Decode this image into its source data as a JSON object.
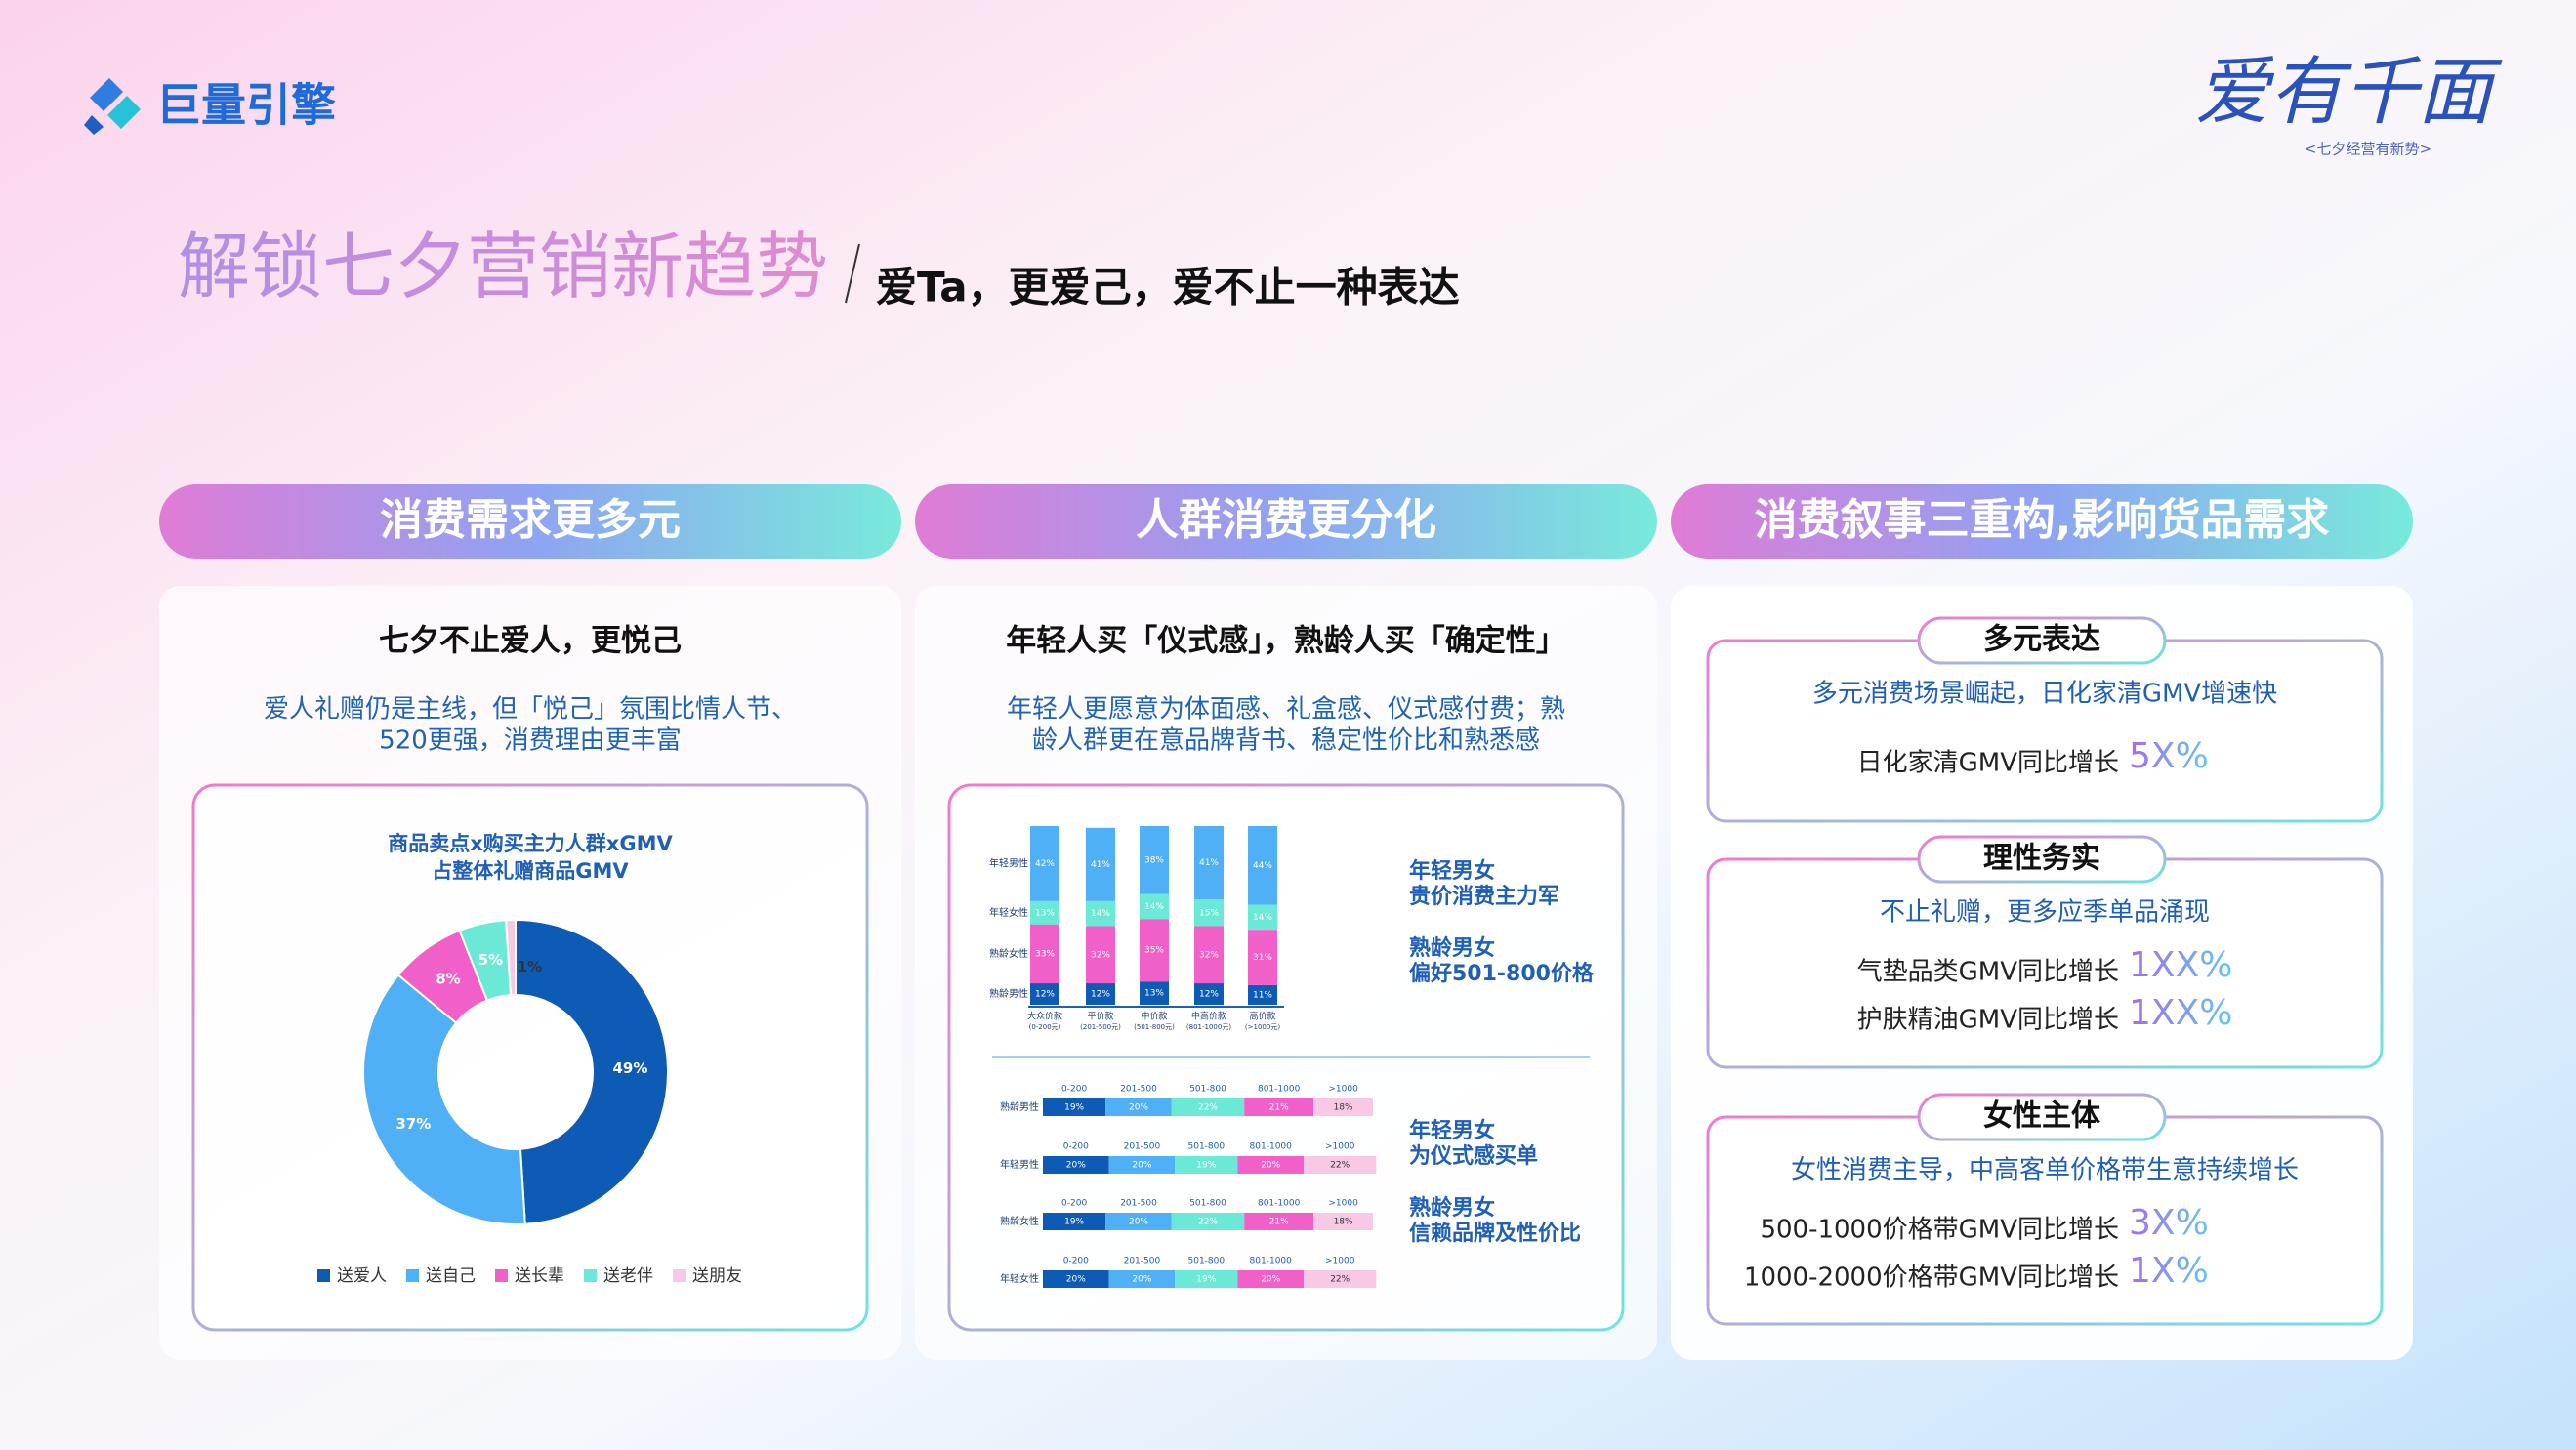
{
  "header": {
    "logo_text": "巨量引擎",
    "brand": "爱有千面",
    "brand_sub": "<七夕经营有新势>",
    "title": "解锁七夕营销新趋势",
    "subtitle": "爱Ta，更爱己，爱不止一种表达"
  },
  "panels": [
    {
      "heading": "消费需求更多元",
      "title": "七夕不止爱人，更悦己",
      "desc": [
        "爱人礼赠仍是主线，但「悦己」氛围比情人节、",
        "520更强，消费理由更丰富"
      ]
    },
    {
      "heading": "人群消费更分化",
      "title": "年轻人买「仪式感」，熟龄人买「确定性」",
      "desc": [
        "年轻人更愿意为体面感、礼盒感、仪式感付费；熟",
        "龄人群更在意品牌背书、稳定性价比和熟悉感"
      ],
      "notes": [
        [
          "年轻男女",
          "贵价消费主力军"
        ],
        [
          "熟龄男女",
          "偏好501-800价格"
        ],
        [
          "年轻男女",
          "为仪式感买单"
        ],
        [
          "熟龄男女",
          "信赖品牌及性价比"
        ]
      ]
    },
    {
      "heading": "消费叙事三重构,影响货品需求",
      "boxes": [
        {
          "tag": "多元表达",
          "desc": "多元消费场景崛起，日化家清GMV增速快",
          "rows": [
            {
              "label": "日化家清GMV同比增长",
              "value": "5X%"
            }
          ]
        },
        {
          "tag": "理性务实",
          "desc": "不止礼赠，更多应季单品涌现",
          "rows": [
            {
              "label": "气垫品类GMV同比增长",
              "value": "1XX%"
            },
            {
              "label": "护肤精油GMV同比增长",
              "value": "1XX%"
            }
          ]
        },
        {
          "tag": "女性主体",
          "desc": "女性消费主导，中高客单价格带生意持续增长",
          "rows": [
            {
              "label": "500-1000价格带GMV同比增长",
              "value": "3X%"
            },
            {
              "label": "1000-2000价格带GMV同比增长",
              "value": "1X%"
            }
          ]
        }
      ]
    }
  ],
  "chart_data": [
    {
      "type": "pie",
      "donut": true,
      "title": [
        "商品卖点x购买主力人群xGMV",
        "占整体礼赠商品GMV"
      ],
      "categories": [
        "送爱人",
        "送自己",
        "送长辈",
        "送老伴",
        "送朋友"
      ],
      "values": [
        49,
        37,
        8,
        5,
        1
      ],
      "value_labels": [
        "49%",
        "37%",
        "8%",
        "5%",
        "1%"
      ],
      "colors": [
        "#0d5bb5",
        "#4fb0f5",
        "#f15fc8",
        "#6ce8d6",
        "#f8c8e4"
      ]
    },
    {
      "type": "bar",
      "stacked": true,
      "categories": [
        "大众价款",
        "平价款",
        "中价款",
        "中高价款",
        "高价款"
      ],
      "category_notes": [
        "(0-200元)",
        "(201-500元)",
        "(501-800元)",
        "(801-1000元)",
        "(>1000元)"
      ],
      "ylim": [
        0,
        100
      ],
      "series": [
        {
          "name": "熟龄男性",
          "color": "#0d5bb5",
          "values": [
            12,
            12,
            13,
            12,
            11
          ],
          "value_labels": [
            "12%",
            "12%",
            "13%",
            "12%",
            "11%"
          ]
        },
        {
          "name": "熟龄女性",
          "color": "#f15fc8",
          "values": [
            33,
            32,
            35,
            32,
            31
          ],
          "value_labels": [
            "33%",
            "32%",
            "35%",
            "32%",
            "31%"
          ]
        },
        {
          "name": "年轻女性",
          "color": "#6ce8d6",
          "values": [
            13,
            14,
            14,
            15,
            14
          ],
          "value_labels": [
            "13%",
            "14%",
            "14%",
            "15%",
            "14%"
          ]
        },
        {
          "name": "年轻男性",
          "color": "#4fb0f5",
          "values": [
            42,
            41,
            38,
            41,
            44
          ],
          "value_labels": [
            "42%",
            "41%",
            "38%",
            "41%",
            "44%"
          ]
        }
      ]
    },
    {
      "type": "hbar",
      "categories": [
        "0-200",
        "201-500",
        "501-800",
        "801-1000",
        ">1000"
      ],
      "colors": [
        "#0d5bb5",
        "#4fb0f5",
        "#6ce8d6",
        "#f15fc8",
        "#f8c8e4"
      ],
      "xlim": [
        0,
        100
      ],
      "series": [
        {
          "name": "熟龄男性",
          "values": [
            19,
            20,
            22,
            21,
            18
          ],
          "value_labels": [
            "19%",
            "20%",
            "22%",
            "21%",
            "18%"
          ]
        },
        {
          "name": "年轻男性",
          "values": [
            20,
            20,
            19,
            20,
            22
          ],
          "value_labels": [
            "20%",
            "20%",
            "19%",
            "20%",
            "22%"
          ]
        },
        {
          "name": "熟龄女性",
          "values": [
            19,
            20,
            22,
            21,
            18
          ],
          "value_labels": [
            "19%",
            "20%",
            "22%",
            "21%",
            "18%"
          ]
        },
        {
          "name": "年轻女性",
          "values": [
            20,
            20,
            19,
            20,
            22
          ],
          "value_labels": [
            "20%",
            "20%",
            "19%",
            "20%",
            "22%"
          ]
        }
      ]
    }
  ]
}
